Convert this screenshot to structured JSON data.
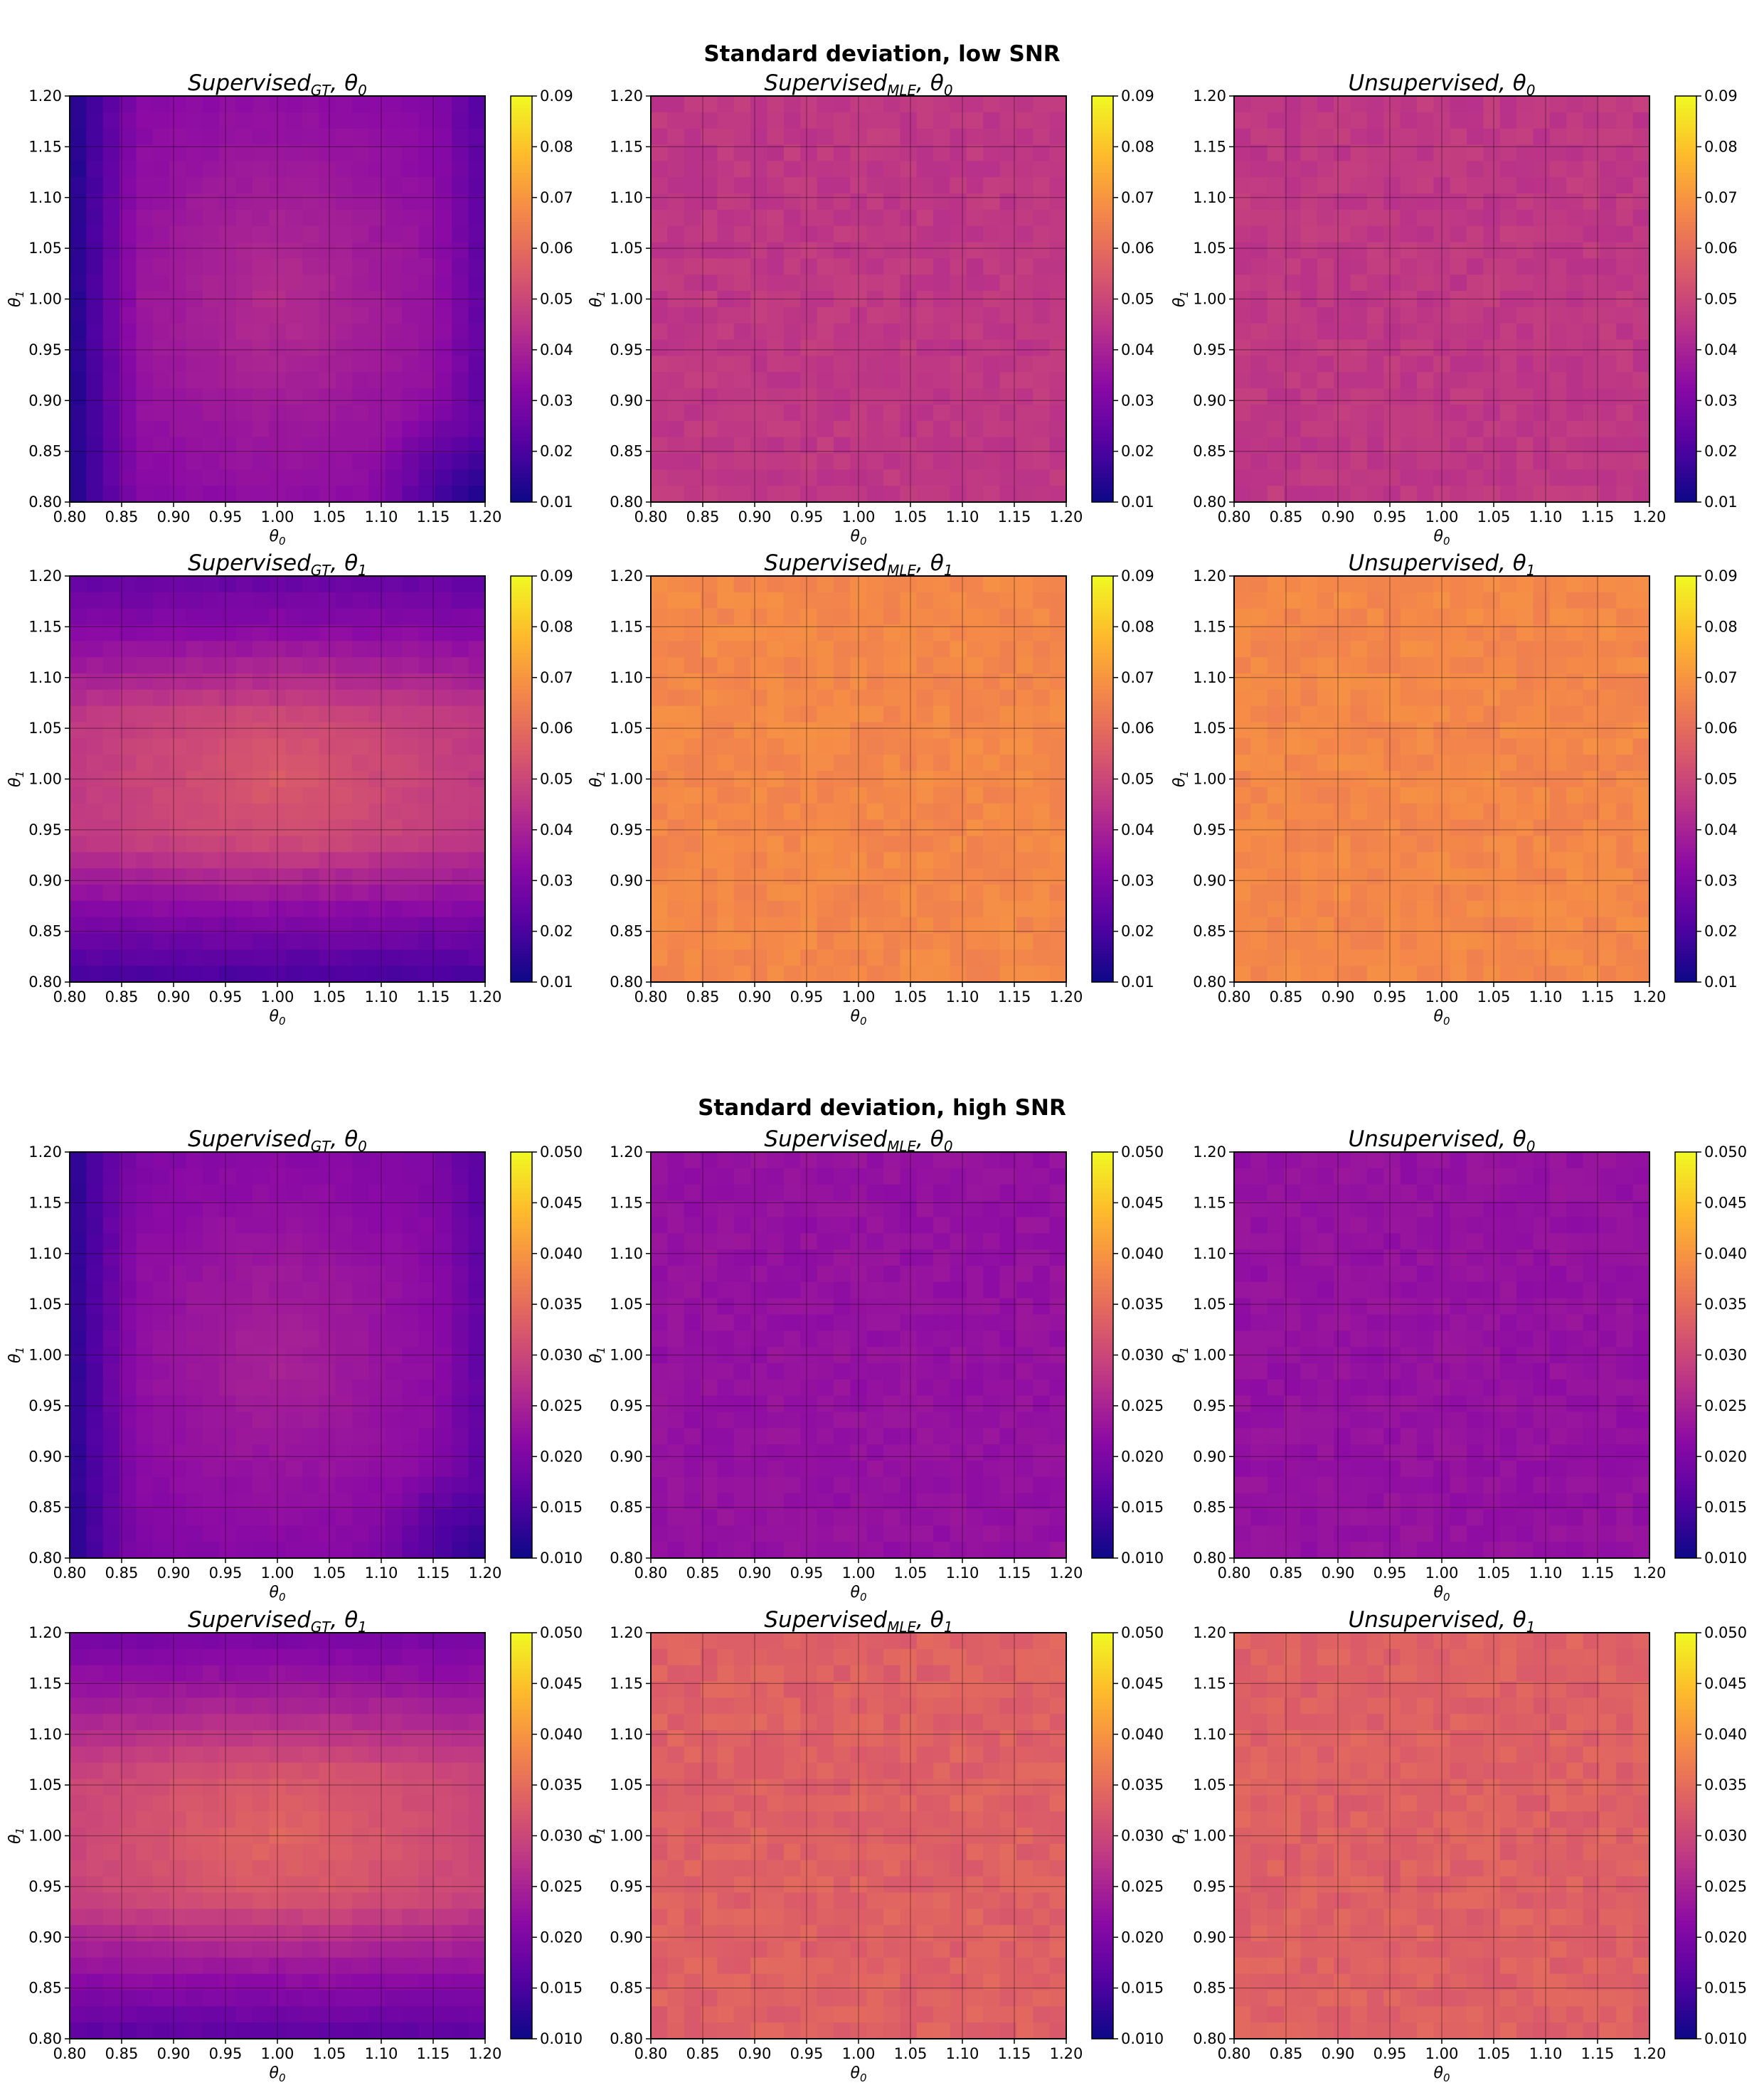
{
  "sections": [
    {
      "title": "Standard deviation, low SNR",
      "colorbar_ticks": [
        "0.01",
        "0.02",
        "0.03",
        "0.04",
        "0.05",
        "0.06",
        "0.07",
        "0.08",
        "0.09"
      ],
      "vmin": 0.01,
      "vmax": 0.09
    },
    {
      "title": "Standard deviation, high SNR",
      "colorbar_ticks": [
        "0.010",
        "0.015",
        "0.020",
        "0.025",
        "0.030",
        "0.035",
        "0.040",
        "0.045",
        "0.050"
      ],
      "vmin": 0.01,
      "vmax": 0.05
    }
  ],
  "axis": {
    "xlabel": "θ0",
    "ylabel": "θ1",
    "ticks": [
      "0.80",
      "0.85",
      "0.90",
      "0.95",
      "1.00",
      "1.05",
      "1.10",
      "1.15",
      "1.20"
    ]
  },
  "colormap": "plasma",
  "chart_data": [
    {
      "type": "heatmap",
      "section": 0,
      "title": "Supervised_GT, θ0",
      "pattern": "gt_t0",
      "xlim": [
        0.8,
        1.2
      ],
      "ylim": [
        0.8,
        1.2
      ],
      "grid": true,
      "grid_size": 25,
      "value_range": [
        0.01,
        0.045
      ],
      "center_value": 0.043,
      "edge_value": 0.012
    },
    {
      "type": "heatmap",
      "section": 0,
      "title": "Supervised_MLE, θ0",
      "pattern": "uniform",
      "xlim": [
        0.8,
        1.2
      ],
      "ylim": [
        0.8,
        1.2
      ],
      "grid": true,
      "grid_size": 25,
      "mean_value": 0.046,
      "noise": 0.002
    },
    {
      "type": "heatmap",
      "section": 0,
      "title": "Unsupervised, θ0",
      "pattern": "uniform",
      "xlim": [
        0.8,
        1.2
      ],
      "ylim": [
        0.8,
        1.2
      ],
      "grid": true,
      "grid_size": 25,
      "mean_value": 0.046,
      "noise": 0.002
    },
    {
      "type": "heatmap",
      "section": 0,
      "title": "Supervised_GT, θ1",
      "pattern": "gt_t1",
      "xlim": [
        0.8,
        1.2
      ],
      "ylim": [
        0.8,
        1.2
      ],
      "grid": true,
      "grid_size": 25,
      "value_range": [
        0.015,
        0.055
      ],
      "center_value": 0.055,
      "edge_value": 0.018
    },
    {
      "type": "heatmap",
      "section": 0,
      "title": "Supervised_MLE, θ1",
      "pattern": "uniform",
      "xlim": [
        0.8,
        1.2
      ],
      "ylim": [
        0.8,
        1.2
      ],
      "grid": true,
      "grid_size": 25,
      "mean_value": 0.067,
      "noise": 0.002
    },
    {
      "type": "heatmap",
      "section": 0,
      "title": "Unsupervised, θ1",
      "pattern": "uniform",
      "xlim": [
        0.8,
        1.2
      ],
      "ylim": [
        0.8,
        1.2
      ],
      "grid": true,
      "grid_size": 25,
      "mean_value": 0.067,
      "noise": 0.002
    },
    {
      "type": "heatmap",
      "section": 1,
      "title": "Supervised_GT, θ0",
      "pattern": "gt_t0",
      "xlim": [
        0.8,
        1.2
      ],
      "ylim": [
        0.8,
        1.2
      ],
      "grid": true,
      "grid_size": 25,
      "value_range": [
        0.011,
        0.026
      ],
      "center_value": 0.025,
      "edge_value": 0.012
    },
    {
      "type": "heatmap",
      "section": 1,
      "title": "Supervised_MLE, θ0",
      "pattern": "uniform",
      "xlim": [
        0.8,
        1.2
      ],
      "ylim": [
        0.8,
        1.2
      ],
      "grid": true,
      "grid_size": 25,
      "mean_value": 0.0225,
      "noise": 0.0008
    },
    {
      "type": "heatmap",
      "section": 1,
      "title": "Unsupervised, θ0",
      "pattern": "uniform",
      "xlim": [
        0.8,
        1.2
      ],
      "ylim": [
        0.8,
        1.2
      ],
      "grid": true,
      "grid_size": 25,
      "mean_value": 0.0225,
      "noise": 0.0008
    },
    {
      "type": "heatmap",
      "section": 1,
      "title": "Supervised_GT, θ1",
      "pattern": "gt_t1",
      "xlim": [
        0.8,
        1.2
      ],
      "ylim": [
        0.8,
        1.2
      ],
      "grid": true,
      "grid_size": 25,
      "value_range": [
        0.013,
        0.034
      ],
      "center_value": 0.034,
      "edge_value": 0.016
    },
    {
      "type": "heatmap",
      "section": 1,
      "title": "Supervised_MLE, θ1",
      "pattern": "uniform",
      "xlim": [
        0.8,
        1.2
      ],
      "ylim": [
        0.8,
        1.2
      ],
      "grid": true,
      "grid_size": 25,
      "mean_value": 0.0335,
      "noise": 0.0012
    },
    {
      "type": "heatmap",
      "section": 1,
      "title": "Unsupervised, θ1",
      "pattern": "uniform",
      "xlim": [
        0.8,
        1.2
      ],
      "ylim": [
        0.8,
        1.2
      ],
      "grid": true,
      "grid_size": 25,
      "mean_value": 0.0335,
      "noise": 0.0012
    }
  ]
}
